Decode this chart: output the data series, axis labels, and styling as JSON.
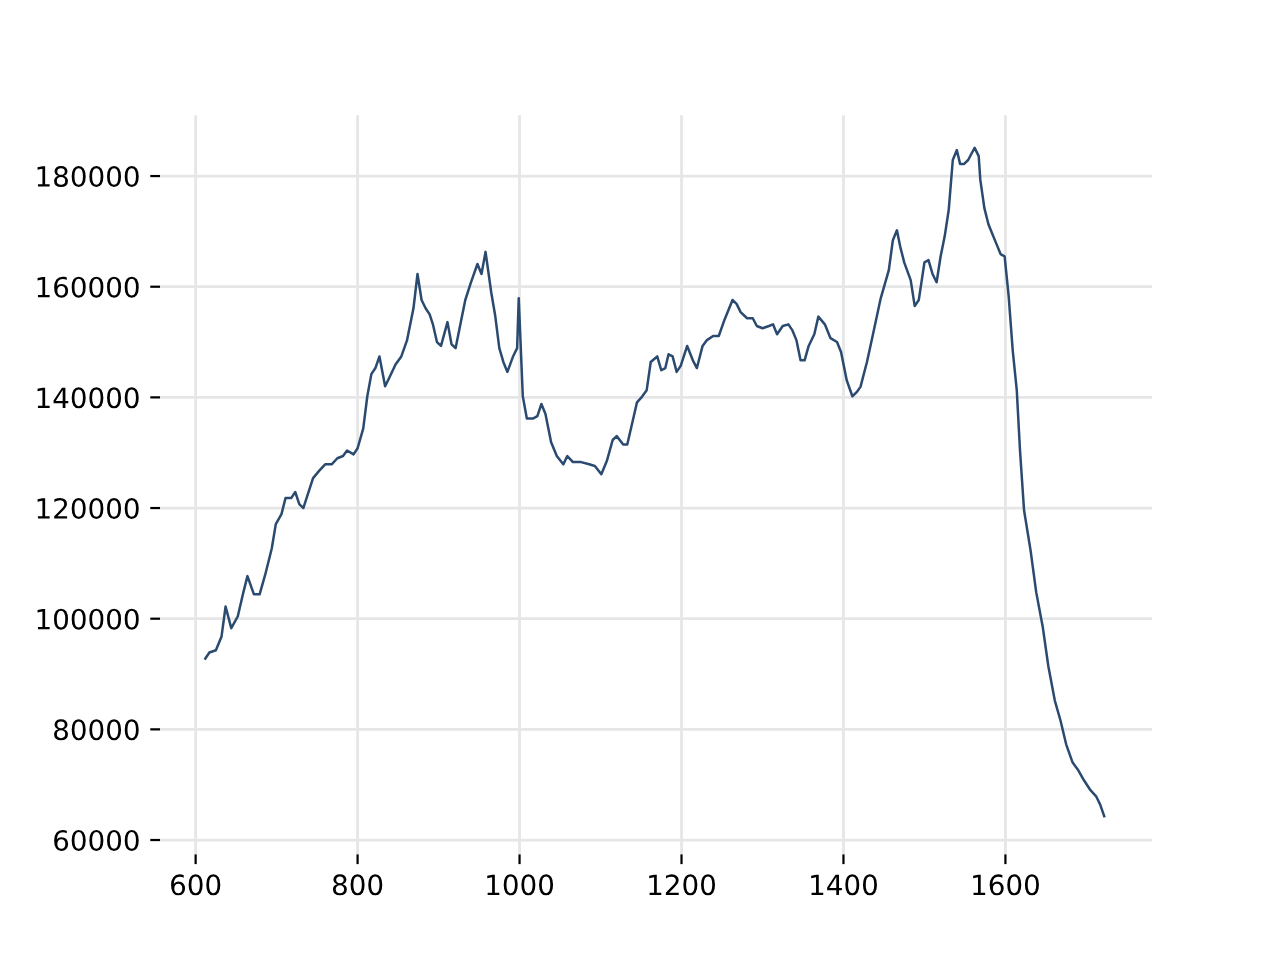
{
  "chart_data": {
    "type": "line",
    "x": [
      612,
      617,
      625,
      632,
      637,
      644,
      652,
      659,
      664,
      672,
      679,
      686,
      694,
      699,
      706,
      711,
      718,
      723,
      728,
      733,
      741,
      745,
      753,
      760,
      768,
      775,
      782,
      787,
      795,
      800,
      807,
      812,
      817,
      822,
      827,
      834,
      839,
      847,
      854,
      861,
      869,
      874,
      879,
      884,
      889,
      893,
      898,
      903,
      911,
      916,
      921,
      928,
      933,
      940,
      948,
      953,
      958,
      965,
      970,
      975,
      980,
      985,
      992,
      997,
      999,
      1004,
      1009,
      1017,
      1022,
      1027,
      1032,
      1039,
      1046,
      1054,
      1059,
      1066,
      1076,
      1086,
      1093,
      1101,
      1108,
      1115,
      1120,
      1128,
      1133,
      1140,
      1145,
      1150,
      1157,
      1162,
      1170,
      1175,
      1180,
      1184,
      1189,
      1194,
      1199,
      1207,
      1214,
      1219,
      1226,
      1231,
      1239,
      1246,
      1253,
      1263,
      1268,
      1273,
      1281,
      1288,
      1293,
      1300,
      1308,
      1313,
      1318,
      1325,
      1332,
      1337,
      1342,
      1347,
      1352,
      1357,
      1364,
      1369,
      1377,
      1384,
      1392,
      1397,
      1404,
      1411,
      1416,
      1421,
      1429,
      1436,
      1446,
      1456,
      1461,
      1466,
      1470,
      1475,
      1483,
      1488,
      1493,
      1500,
      1505,
      1510,
      1515,
      1520,
      1525,
      1530,
      1535,
      1540,
      1544,
      1549,
      1554,
      1559,
      1562,
      1567,
      1569,
      1574,
      1579,
      1584,
      1589,
      1594,
      1599,
      1604,
      1609,
      1614,
      1618,
      1623,
      1631,
      1638,
      1646,
      1653,
      1661,
      1668,
      1675,
      1683,
      1690,
      1697,
      1705,
      1712,
      1717,
      1722
    ],
    "series": [
      {
        "color": "#2b4a6f",
        "values": [
          92800,
          93900,
          94300,
          96800,
          102200,
          98300,
          100400,
          104800,
          107700,
          104400,
          104400,
          108000,
          112700,
          117100,
          118900,
          121800,
          121800,
          122900,
          120700,
          120000,
          123600,
          125400,
          126800,
          127900,
          127900,
          129000,
          129400,
          130400,
          129700,
          130800,
          134400,
          140200,
          144200,
          145300,
          147400,
          142000,
          143500,
          146000,
          147400,
          150300,
          156100,
          162300,
          157600,
          156100,
          155000,
          153200,
          150000,
          149300,
          153600,
          149600,
          148900,
          154000,
          157600,
          160800,
          164100,
          162300,
          166300,
          159000,
          154700,
          148900,
          146400,
          144600,
          147400,
          148900,
          157900,
          140200,
          136200,
          136200,
          136600,
          138800,
          137000,
          131900,
          129400,
          127900,
          129400,
          128300,
          128300,
          127900,
          127600,
          126100,
          128600,
          132300,
          133000,
          131500,
          131500,
          135900,
          139100,
          139900,
          141300,
          146400,
          147400,
          144900,
          145300,
          147800,
          147400,
          144600,
          145700,
          149300,
          146700,
          145300,
          149300,
          150300,
          151100,
          151100,
          154000,
          157600,
          156900,
          155400,
          154300,
          154300,
          152900,
          152500,
          152900,
          153200,
          151400,
          152900,
          153200,
          152100,
          150300,
          146700,
          146700,
          149300,
          151400,
          154600,
          153200,
          150700,
          150000,
          148200,
          143100,
          140200,
          140900,
          141900,
          146400,
          151100,
          157900,
          163000,
          168400,
          170200,
          167300,
          164400,
          161200,
          156500,
          157600,
          164400,
          164800,
          162300,
          160800,
          165500,
          169100,
          173900,
          182900,
          184700,
          182200,
          182200,
          182900,
          184300,
          185100,
          183600,
          179300,
          174200,
          171300,
          169500,
          167700,
          165900,
          165500,
          158300,
          148500,
          141300,
          130400,
          119600,
          112400,
          104800,
          98600,
          91400,
          85200,
          81600,
          77300,
          74000,
          72600,
          70800,
          69000,
          67900,
          66400,
          64300
        ]
      }
    ],
    "xlim": [
      556,
      1781
    ],
    "ylim": [
      57400,
      191000
    ],
    "xticks": [
      600,
      800,
      1000,
      1200,
      1400,
      1600
    ],
    "yticks": [
      60000,
      80000,
      100000,
      120000,
      140000,
      160000,
      180000
    ],
    "grid": true,
    "line_style": "solid",
    "marker": "none"
  }
}
